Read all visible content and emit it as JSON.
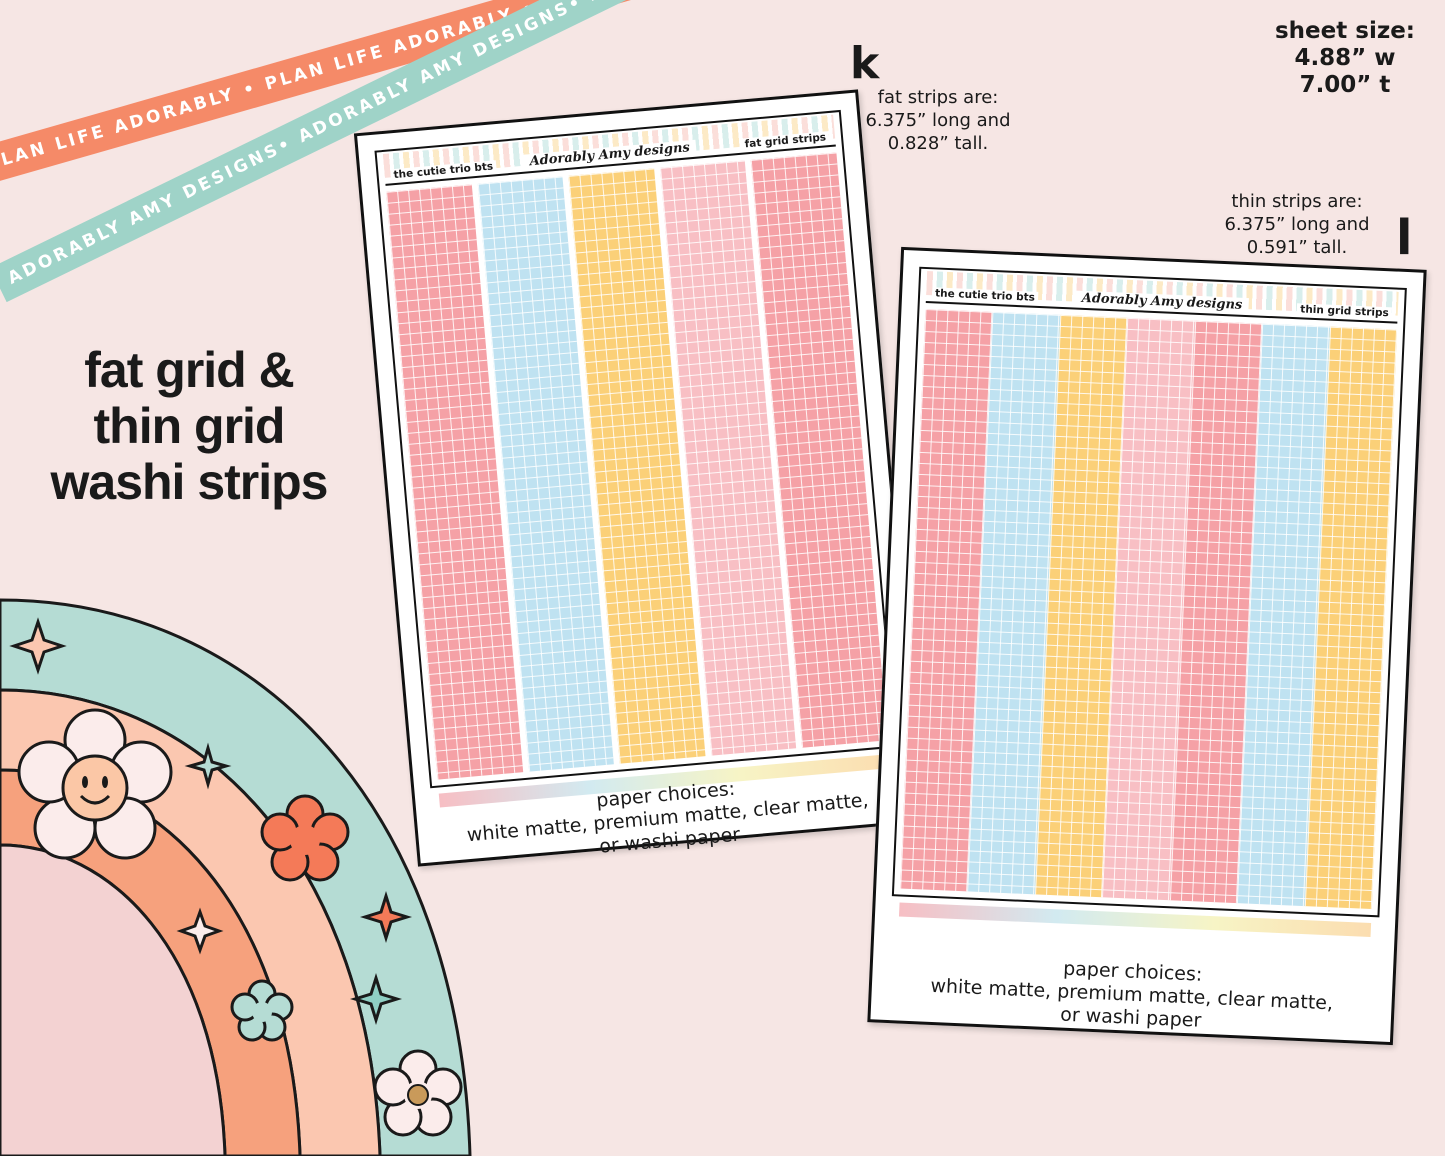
{
  "ribbons": {
    "orange": "PLAN LIFE ADORABLY • PLAN LIFE ADORABLY • PLAN LIFE ADORABLY • PLAN LIFE ADORABLY •",
    "teal": "ADORABLY AMY DESIGNS• ADORABLY AMY DESIGNS• ADORABLY AMY DESIGNS• ADORABLY AMY DESIGNS•"
  },
  "headline": [
    "fat grid &",
    "thin grid",
    "washi strips"
  ],
  "sheet_size": [
    "sheet size:",
    "4.88” w",
    "7.00” t"
  ],
  "fat_info": [
    "fat strips are:",
    "6.375” long and",
    "0.828” tall."
  ],
  "thin_info": [
    "thin strips are:",
    "6.375” long and",
    "0.591” tall."
  ],
  "corner_letters": {
    "fat": "k",
    "thin": "l"
  },
  "sheet_fat": {
    "header_left": "the cutie trio bts",
    "logo": "Adorably Amy designs",
    "header_right": "fat grid strips",
    "strip_colors": [
      "#f5a1a6",
      "#bfe2f1",
      "#fbd078",
      "#f8bfc4",
      "#f5a1a6"
    ]
  },
  "sheet_thin": {
    "header_left": "the cutie trio bts",
    "logo": "Adorably Amy designs",
    "header_right": "thin grid strips",
    "strip_colors": [
      "#f5a1a6",
      "#bfe2f1",
      "#fbd078",
      "#f8bfc4",
      "#f5a1a6",
      "#bfe2f1",
      "#fbd078"
    ]
  },
  "paper_choices": [
    "paper choices:",
    "white matte, premium matte, clear matte,",
    "or washi paper"
  ],
  "colors": {
    "background": "#f6e6e4",
    "orange_ribbon": "#f58a68",
    "teal_ribbon": "#9fd3c8",
    "rainbow_teal": "#b5dcd4",
    "rainbow_peach": "#fbc7b0",
    "rainbow_orange": "#f6a17d",
    "rainbow_pink": "#f3d2d2"
  }
}
